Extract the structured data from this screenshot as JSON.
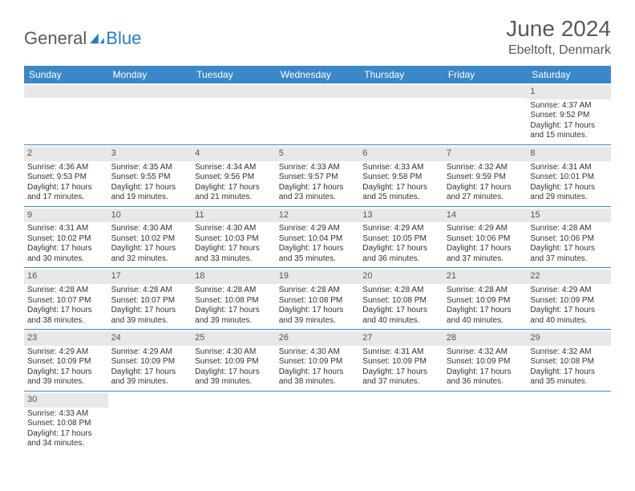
{
  "logo": {
    "text1": "General",
    "text2": "Blue"
  },
  "title": "June 2024",
  "location": "Ebeltoft, Denmark",
  "colors": {
    "header_bg": "#3b87c8",
    "header_fg": "#ffffff",
    "daynum_bg": "#e8e8e8",
    "text": "#333333",
    "border": "#3b87c8"
  },
  "dayNames": [
    "Sunday",
    "Monday",
    "Tuesday",
    "Wednesday",
    "Thursday",
    "Friday",
    "Saturday"
  ],
  "weeks": [
    [
      {
        "n": "",
        "sr": "",
        "ss": "",
        "dl": ""
      },
      {
        "n": "",
        "sr": "",
        "ss": "",
        "dl": ""
      },
      {
        "n": "",
        "sr": "",
        "ss": "",
        "dl": ""
      },
      {
        "n": "",
        "sr": "",
        "ss": "",
        "dl": ""
      },
      {
        "n": "",
        "sr": "",
        "ss": "",
        "dl": ""
      },
      {
        "n": "",
        "sr": "",
        "ss": "",
        "dl": ""
      },
      {
        "n": "1",
        "sr": "Sunrise: 4:37 AM",
        "ss": "Sunset: 9:52 PM",
        "dl": "Daylight: 17 hours and 15 minutes."
      }
    ],
    [
      {
        "n": "2",
        "sr": "Sunrise: 4:36 AM",
        "ss": "Sunset: 9:53 PM",
        "dl": "Daylight: 17 hours and 17 minutes."
      },
      {
        "n": "3",
        "sr": "Sunrise: 4:35 AM",
        "ss": "Sunset: 9:55 PM",
        "dl": "Daylight: 17 hours and 19 minutes."
      },
      {
        "n": "4",
        "sr": "Sunrise: 4:34 AM",
        "ss": "Sunset: 9:56 PM",
        "dl": "Daylight: 17 hours and 21 minutes."
      },
      {
        "n": "5",
        "sr": "Sunrise: 4:33 AM",
        "ss": "Sunset: 9:57 PM",
        "dl": "Daylight: 17 hours and 23 minutes."
      },
      {
        "n": "6",
        "sr": "Sunrise: 4:33 AM",
        "ss": "Sunset: 9:58 PM",
        "dl": "Daylight: 17 hours and 25 minutes."
      },
      {
        "n": "7",
        "sr": "Sunrise: 4:32 AM",
        "ss": "Sunset: 9:59 PM",
        "dl": "Daylight: 17 hours and 27 minutes."
      },
      {
        "n": "8",
        "sr": "Sunrise: 4:31 AM",
        "ss": "Sunset: 10:01 PM",
        "dl": "Daylight: 17 hours and 29 minutes."
      }
    ],
    [
      {
        "n": "9",
        "sr": "Sunrise: 4:31 AM",
        "ss": "Sunset: 10:02 PM",
        "dl": "Daylight: 17 hours and 30 minutes."
      },
      {
        "n": "10",
        "sr": "Sunrise: 4:30 AM",
        "ss": "Sunset: 10:02 PM",
        "dl": "Daylight: 17 hours and 32 minutes."
      },
      {
        "n": "11",
        "sr": "Sunrise: 4:30 AM",
        "ss": "Sunset: 10:03 PM",
        "dl": "Daylight: 17 hours and 33 minutes."
      },
      {
        "n": "12",
        "sr": "Sunrise: 4:29 AM",
        "ss": "Sunset: 10:04 PM",
        "dl": "Daylight: 17 hours and 35 minutes."
      },
      {
        "n": "13",
        "sr": "Sunrise: 4:29 AM",
        "ss": "Sunset: 10:05 PM",
        "dl": "Daylight: 17 hours and 36 minutes."
      },
      {
        "n": "14",
        "sr": "Sunrise: 4:29 AM",
        "ss": "Sunset: 10:06 PM",
        "dl": "Daylight: 17 hours and 37 minutes."
      },
      {
        "n": "15",
        "sr": "Sunrise: 4:28 AM",
        "ss": "Sunset: 10:06 PM",
        "dl": "Daylight: 17 hours and 37 minutes."
      }
    ],
    [
      {
        "n": "16",
        "sr": "Sunrise: 4:28 AM",
        "ss": "Sunset: 10:07 PM",
        "dl": "Daylight: 17 hours and 38 minutes."
      },
      {
        "n": "17",
        "sr": "Sunrise: 4:28 AM",
        "ss": "Sunset: 10:07 PM",
        "dl": "Daylight: 17 hours and 39 minutes."
      },
      {
        "n": "18",
        "sr": "Sunrise: 4:28 AM",
        "ss": "Sunset: 10:08 PM",
        "dl": "Daylight: 17 hours and 39 minutes."
      },
      {
        "n": "19",
        "sr": "Sunrise: 4:28 AM",
        "ss": "Sunset: 10:08 PM",
        "dl": "Daylight: 17 hours and 39 minutes."
      },
      {
        "n": "20",
        "sr": "Sunrise: 4:28 AM",
        "ss": "Sunset: 10:08 PM",
        "dl": "Daylight: 17 hours and 40 minutes."
      },
      {
        "n": "21",
        "sr": "Sunrise: 4:28 AM",
        "ss": "Sunset: 10:09 PM",
        "dl": "Daylight: 17 hours and 40 minutes."
      },
      {
        "n": "22",
        "sr": "Sunrise: 4:29 AM",
        "ss": "Sunset: 10:09 PM",
        "dl": "Daylight: 17 hours and 40 minutes."
      }
    ],
    [
      {
        "n": "23",
        "sr": "Sunrise: 4:29 AM",
        "ss": "Sunset: 10:09 PM",
        "dl": "Daylight: 17 hours and 39 minutes."
      },
      {
        "n": "24",
        "sr": "Sunrise: 4:29 AM",
        "ss": "Sunset: 10:09 PM",
        "dl": "Daylight: 17 hours and 39 minutes."
      },
      {
        "n": "25",
        "sr": "Sunrise: 4:30 AM",
        "ss": "Sunset: 10:09 PM",
        "dl": "Daylight: 17 hours and 39 minutes."
      },
      {
        "n": "26",
        "sr": "Sunrise: 4:30 AM",
        "ss": "Sunset: 10:09 PM",
        "dl": "Daylight: 17 hours and 38 minutes."
      },
      {
        "n": "27",
        "sr": "Sunrise: 4:31 AM",
        "ss": "Sunset: 10:09 PM",
        "dl": "Daylight: 17 hours and 37 minutes."
      },
      {
        "n": "28",
        "sr": "Sunrise: 4:32 AM",
        "ss": "Sunset: 10:09 PM",
        "dl": "Daylight: 17 hours and 36 minutes."
      },
      {
        "n": "29",
        "sr": "Sunrise: 4:32 AM",
        "ss": "Sunset: 10:08 PM",
        "dl": "Daylight: 17 hours and 35 minutes."
      }
    ],
    [
      {
        "n": "30",
        "sr": "Sunrise: 4:33 AM",
        "ss": "Sunset: 10:08 PM",
        "dl": "Daylight: 17 hours and 34 minutes."
      },
      {
        "n": "",
        "sr": "",
        "ss": "",
        "dl": ""
      },
      {
        "n": "",
        "sr": "",
        "ss": "",
        "dl": ""
      },
      {
        "n": "",
        "sr": "",
        "ss": "",
        "dl": ""
      },
      {
        "n": "",
        "sr": "",
        "ss": "",
        "dl": ""
      },
      {
        "n": "",
        "sr": "",
        "ss": "",
        "dl": ""
      },
      {
        "n": "",
        "sr": "",
        "ss": "",
        "dl": ""
      }
    ]
  ]
}
